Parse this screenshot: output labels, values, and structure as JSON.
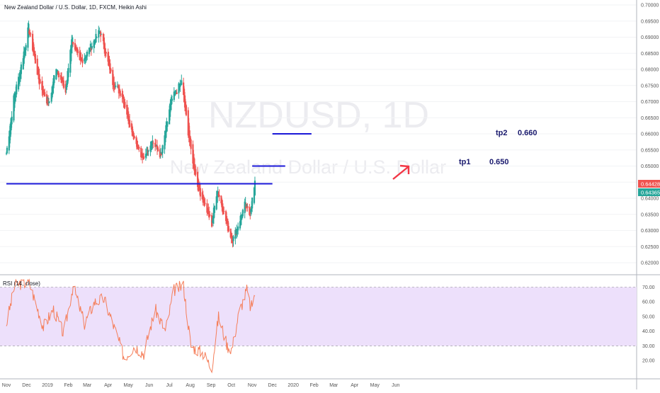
{
  "chart_title": "New Zealand Dollar / U.S. Dollar, 1D, FXCM, Heikin Ashi",
  "watermark": {
    "symbol": "NZDUSD, 1D",
    "name": "New Zealand Dollar / U.S. Dollar"
  },
  "colors": {
    "up": "#26a69a",
    "down": "#ef5350",
    "line": "#1b18d8",
    "arrow": "#f23645",
    "rsi_line": "#f57f5b",
    "rsi_band": "#ede0fb",
    "price_badge_red": "#ef5350",
    "price_badge_green": "#26a69a"
  },
  "price_badges": [
    "0.64428",
    "0.64365"
  ],
  "annotations": {
    "tp1_label": "tp1",
    "tp1_value": "0.650",
    "tp2_label": "tp2",
    "tp2_value": "0.660"
  },
  "rsi": {
    "title": "RSI (14, close)",
    "upper": 70,
    "lower": 30,
    "y_ticks": [
      "70.00",
      "60.00",
      "50.00",
      "40.00",
      "30.00",
      "20.00"
    ]
  },
  "chart_data": [
    {
      "type": "candlestick",
      "title": "New Zealand Dollar / U.S. Dollar, 1D, FXCM, Heikin Ashi",
      "x_ticks": [
        "Nov",
        "Dec",
        "2019",
        "Feb",
        "Mar",
        "Apr",
        "May",
        "Jun",
        "Jul",
        "Aug",
        "Sep",
        "Oct",
        "Nov",
        "Dec",
        "2020",
        "Feb",
        "Mar",
        "Apr",
        "May",
        "Jun"
      ],
      "y_ticks": [
        "0.70000",
        "0.69500",
        "0.69000",
        "0.68500",
        "0.68000",
        "0.67500",
        "0.67000",
        "0.66500",
        "0.66000",
        "0.65500",
        "0.65000",
        "0.64500",
        "0.64000",
        "0.63500",
        "0.63000",
        "0.62500",
        "0.62000"
      ],
      "ylim": [
        0.618,
        0.7
      ],
      "anchors": [
        {
          "date": "2018-11-01",
          "close": 0.654
        },
        {
          "date": "2018-11-12",
          "close": 0.671
        },
        {
          "date": "2018-11-22",
          "close": 0.68
        },
        {
          "date": "2018-12-04",
          "close": 0.693
        },
        {
          "date": "2018-12-20",
          "close": 0.676
        },
        {
          "date": "2019-01-03",
          "close": 0.669
        },
        {
          "date": "2019-01-14",
          "close": 0.681
        },
        {
          "date": "2019-01-28",
          "close": 0.673
        },
        {
          "date": "2019-02-06",
          "close": 0.69
        },
        {
          "date": "2019-02-18",
          "close": 0.682
        },
        {
          "date": "2019-03-01",
          "close": 0.685
        },
        {
          "date": "2019-03-20",
          "close": 0.692
        },
        {
          "date": "2019-04-08",
          "close": 0.676
        },
        {
          "date": "2019-04-22",
          "close": 0.672
        },
        {
          "date": "2019-05-06",
          "close": 0.661
        },
        {
          "date": "2019-05-22",
          "close": 0.652
        },
        {
          "date": "2019-06-05",
          "close": 0.658
        },
        {
          "date": "2019-06-19",
          "close": 0.653
        },
        {
          "date": "2019-07-03",
          "close": 0.67
        },
        {
          "date": "2019-07-19",
          "close": 0.676
        },
        {
          "date": "2019-08-01",
          "close": 0.656
        },
        {
          "date": "2019-08-12",
          "close": 0.644
        },
        {
          "date": "2019-09-02",
          "close": 0.632
        },
        {
          "date": "2019-09-10",
          "close": 0.643
        },
        {
          "date": "2019-09-27",
          "close": 0.63
        },
        {
          "date": "2019-10-03",
          "close": 0.627
        },
        {
          "date": "2019-10-10",
          "close": 0.631
        },
        {
          "date": "2019-10-21",
          "close": 0.638
        },
        {
          "date": "2019-10-28",
          "close": 0.635
        },
        {
          "date": "2019-11-05",
          "close": 0.6443
        }
      ],
      "horizontal_lines": [
        {
          "label": "support/resistance",
          "price": 0.6445,
          "from": "2018-11-01",
          "to": "2019-12-01"
        },
        {
          "label": "tp1",
          "price": 0.65,
          "from": "2019-11-01",
          "to": "2019-12-20"
        },
        {
          "label": "tp2",
          "price": 0.66,
          "from": "2019-12-01",
          "to": "2020-01-28"
        }
      ],
      "last_price": 0.64428
    },
    {
      "type": "line",
      "title": "RSI (14, close)",
      "ylim": [
        10,
        80
      ],
      "anchors": [
        {
          "date": "2018-11-01",
          "value": 45
        },
        {
          "date": "2018-11-14",
          "value": 72
        },
        {
          "date": "2018-12-05",
          "value": 73
        },
        {
          "date": "2018-12-26",
          "value": 43
        },
        {
          "date": "2019-01-10",
          "value": 55
        },
        {
          "date": "2019-01-25",
          "value": 38
        },
        {
          "date": "2019-02-08",
          "value": 71
        },
        {
          "date": "2019-02-25",
          "value": 45
        },
        {
          "date": "2019-03-12",
          "value": 60
        },
        {
          "date": "2019-03-26",
          "value": 62
        },
        {
          "date": "2019-04-12",
          "value": 40
        },
        {
          "date": "2019-04-25",
          "value": 22
        },
        {
          "date": "2019-05-10",
          "value": 30
        },
        {
          "date": "2019-05-24",
          "value": 25
        },
        {
          "date": "2019-06-10",
          "value": 55
        },
        {
          "date": "2019-06-25",
          "value": 40
        },
        {
          "date": "2019-07-08",
          "value": 68
        },
        {
          "date": "2019-07-22",
          "value": 71
        },
        {
          "date": "2019-08-02",
          "value": 30
        },
        {
          "date": "2019-08-20",
          "value": 25
        },
        {
          "date": "2019-09-02",
          "value": 15
        },
        {
          "date": "2019-09-12",
          "value": 50
        },
        {
          "date": "2019-09-25",
          "value": 30
        },
        {
          "date": "2019-10-02",
          "value": 28
        },
        {
          "date": "2019-10-12",
          "value": 52
        },
        {
          "date": "2019-10-24",
          "value": 68
        },
        {
          "date": "2019-10-30",
          "value": 55
        },
        {
          "date": "2019-11-05",
          "value": 66
        }
      ]
    }
  ]
}
